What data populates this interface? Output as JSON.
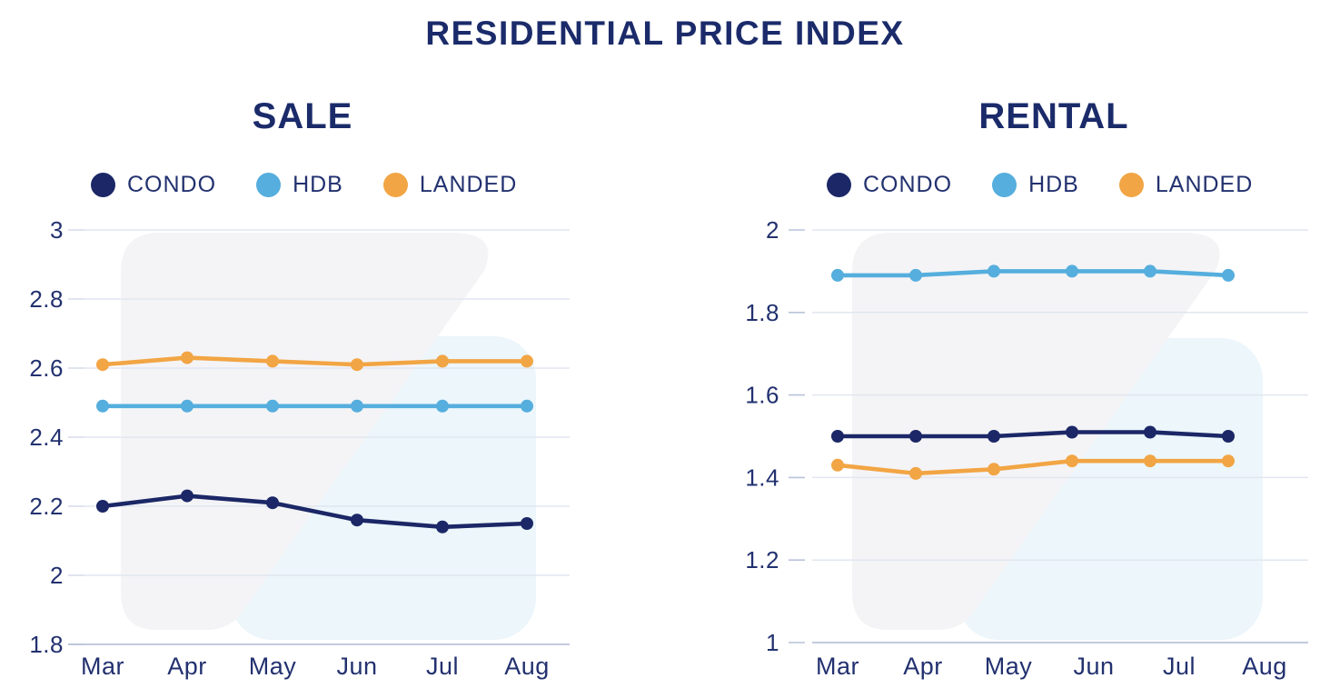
{
  "page": {
    "title": "RESIDENTIAL PRICE INDEX"
  },
  "style": {
    "text_navy": "#22316f",
    "title_navy": "#1b2b6a",
    "gridline": "#e2e6f0",
    "axis": "#b9c3da",
    "watermark_gray": "#f4f4f6",
    "watermark_blue": "#ecf6fb"
  },
  "chart_data": [
    {
      "type": "line",
      "title": "SALE",
      "categories": [
        "Mar",
        "Apr",
        "May",
        "Jun",
        "Jul",
        "Aug"
      ],
      "series": [
        {
          "name": "CONDO",
          "color": "#1b2766",
          "values": [
            2.2,
            2.23,
            2.21,
            2.16,
            2.14,
            2.15
          ]
        },
        {
          "name": "HDB",
          "color": "#55aedd",
          "values": [
            2.49,
            2.49,
            2.49,
            2.49,
            2.49,
            2.49
          ]
        },
        {
          "name": "LANDED",
          "color": "#f2a544",
          "values": [
            2.61,
            2.63,
            2.62,
            2.61,
            2.62,
            2.62
          ]
        }
      ],
      "xlabel": "",
      "ylabel": "",
      "ylim": [
        1.8,
        3
      ],
      "yticks": [
        3,
        2.8,
        2.6,
        2.4,
        2.2,
        2,
        1.8
      ],
      "ytick_labels": [
        "3",
        "2.8",
        "2.6",
        "2.4",
        "2.2",
        "2",
        "1.8"
      ],
      "grid": true,
      "legend_position": "top"
    },
    {
      "type": "line",
      "title": "RENTAL",
      "categories": [
        "Mar",
        "Apr",
        "May",
        "Jun",
        "Jul",
        "Aug"
      ],
      "series": [
        {
          "name": "CONDO",
          "color": "#1b2766",
          "values": [
            1.5,
            1.5,
            1.5,
            1.51,
            1.51,
            1.5
          ]
        },
        {
          "name": "HDB",
          "color": "#55aedd",
          "values": [
            1.89,
            1.89,
            1.9,
            1.9,
            1.9,
            1.89
          ]
        },
        {
          "name": "LANDED",
          "color": "#f2a544",
          "values": [
            1.43,
            1.41,
            1.42,
            1.44,
            1.44,
            1.44
          ]
        }
      ],
      "xlabel": "",
      "ylabel": "",
      "ylim": [
        1,
        2
      ],
      "yticks": [
        2,
        1.8,
        1.6,
        1.4,
        1.2,
        1
      ],
      "ytick_labels": [
        "2",
        "1.8",
        "1.6",
        "1.4",
        "1.2",
        "1"
      ],
      "grid": true,
      "legend_position": "top"
    }
  ]
}
